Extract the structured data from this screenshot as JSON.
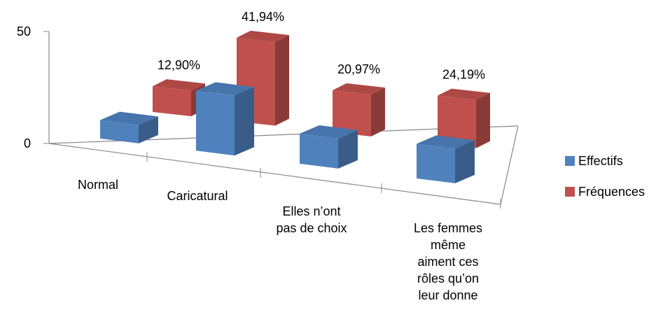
{
  "chart_data": {
    "type": "bar3d",
    "categories": [
      "Normal",
      "Caricatural",
      "Elles n’ont\npas de choix",
      "Les femmes\nmême\naiment ces\nrôles qu’on\nleur donne"
    ],
    "series": [
      {
        "name": "Effectifs",
        "color": "#4f81bd",
        "values": [
          8,
          26,
          13,
          15
        ]
      },
      {
        "name": "Fréquences",
        "color": "#c0504d",
        "values": [
          12.9,
          41.94,
          20.97,
          24.19
        ],
        "value_labels": [
          "12,90%",
          "41,94%",
          "20,97%",
          "24,19%"
        ]
      }
    ],
    "ylim": [
      0,
      50
    ],
    "yticks": [
      0,
      50
    ],
    "legend": "right"
  }
}
